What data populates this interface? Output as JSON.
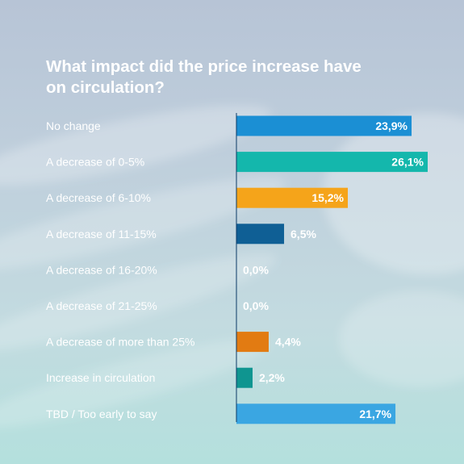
{
  "chart_data": {
    "type": "bar",
    "orientation": "horizontal",
    "title": "What impact did the price increase have on circulation?",
    "categories": [
      "No change",
      "A decrease of 0-5%",
      "A decrease of 6-10%",
      "A decrease of 11-15%",
      "A decrease of 16-20%",
      "A decrease of 21-25%",
      "A decrease of more than 25%",
      "Increase in circulation",
      "TBD / Too early to say"
    ],
    "values": [
      23.9,
      26.1,
      15.2,
      6.5,
      0.0,
      0.0,
      4.4,
      2.2,
      21.7
    ],
    "value_labels": [
      "23,9%",
      "26,1%",
      "15,2%",
      "6,5%",
      "0,0%",
      "0,0%",
      "4,4%",
      "2,2%",
      "21,7%"
    ],
    "colors": [
      "#1b8fd4",
      "#14b7ac",
      "#f5a41a",
      "#0f5f95",
      "#8fa8bd",
      "#8fa8bd",
      "#e27b12",
      "#0f9590",
      "#3aa6e2"
    ],
    "xlim": [
      0,
      26.1
    ],
    "grid": false,
    "legend": "none"
  }
}
